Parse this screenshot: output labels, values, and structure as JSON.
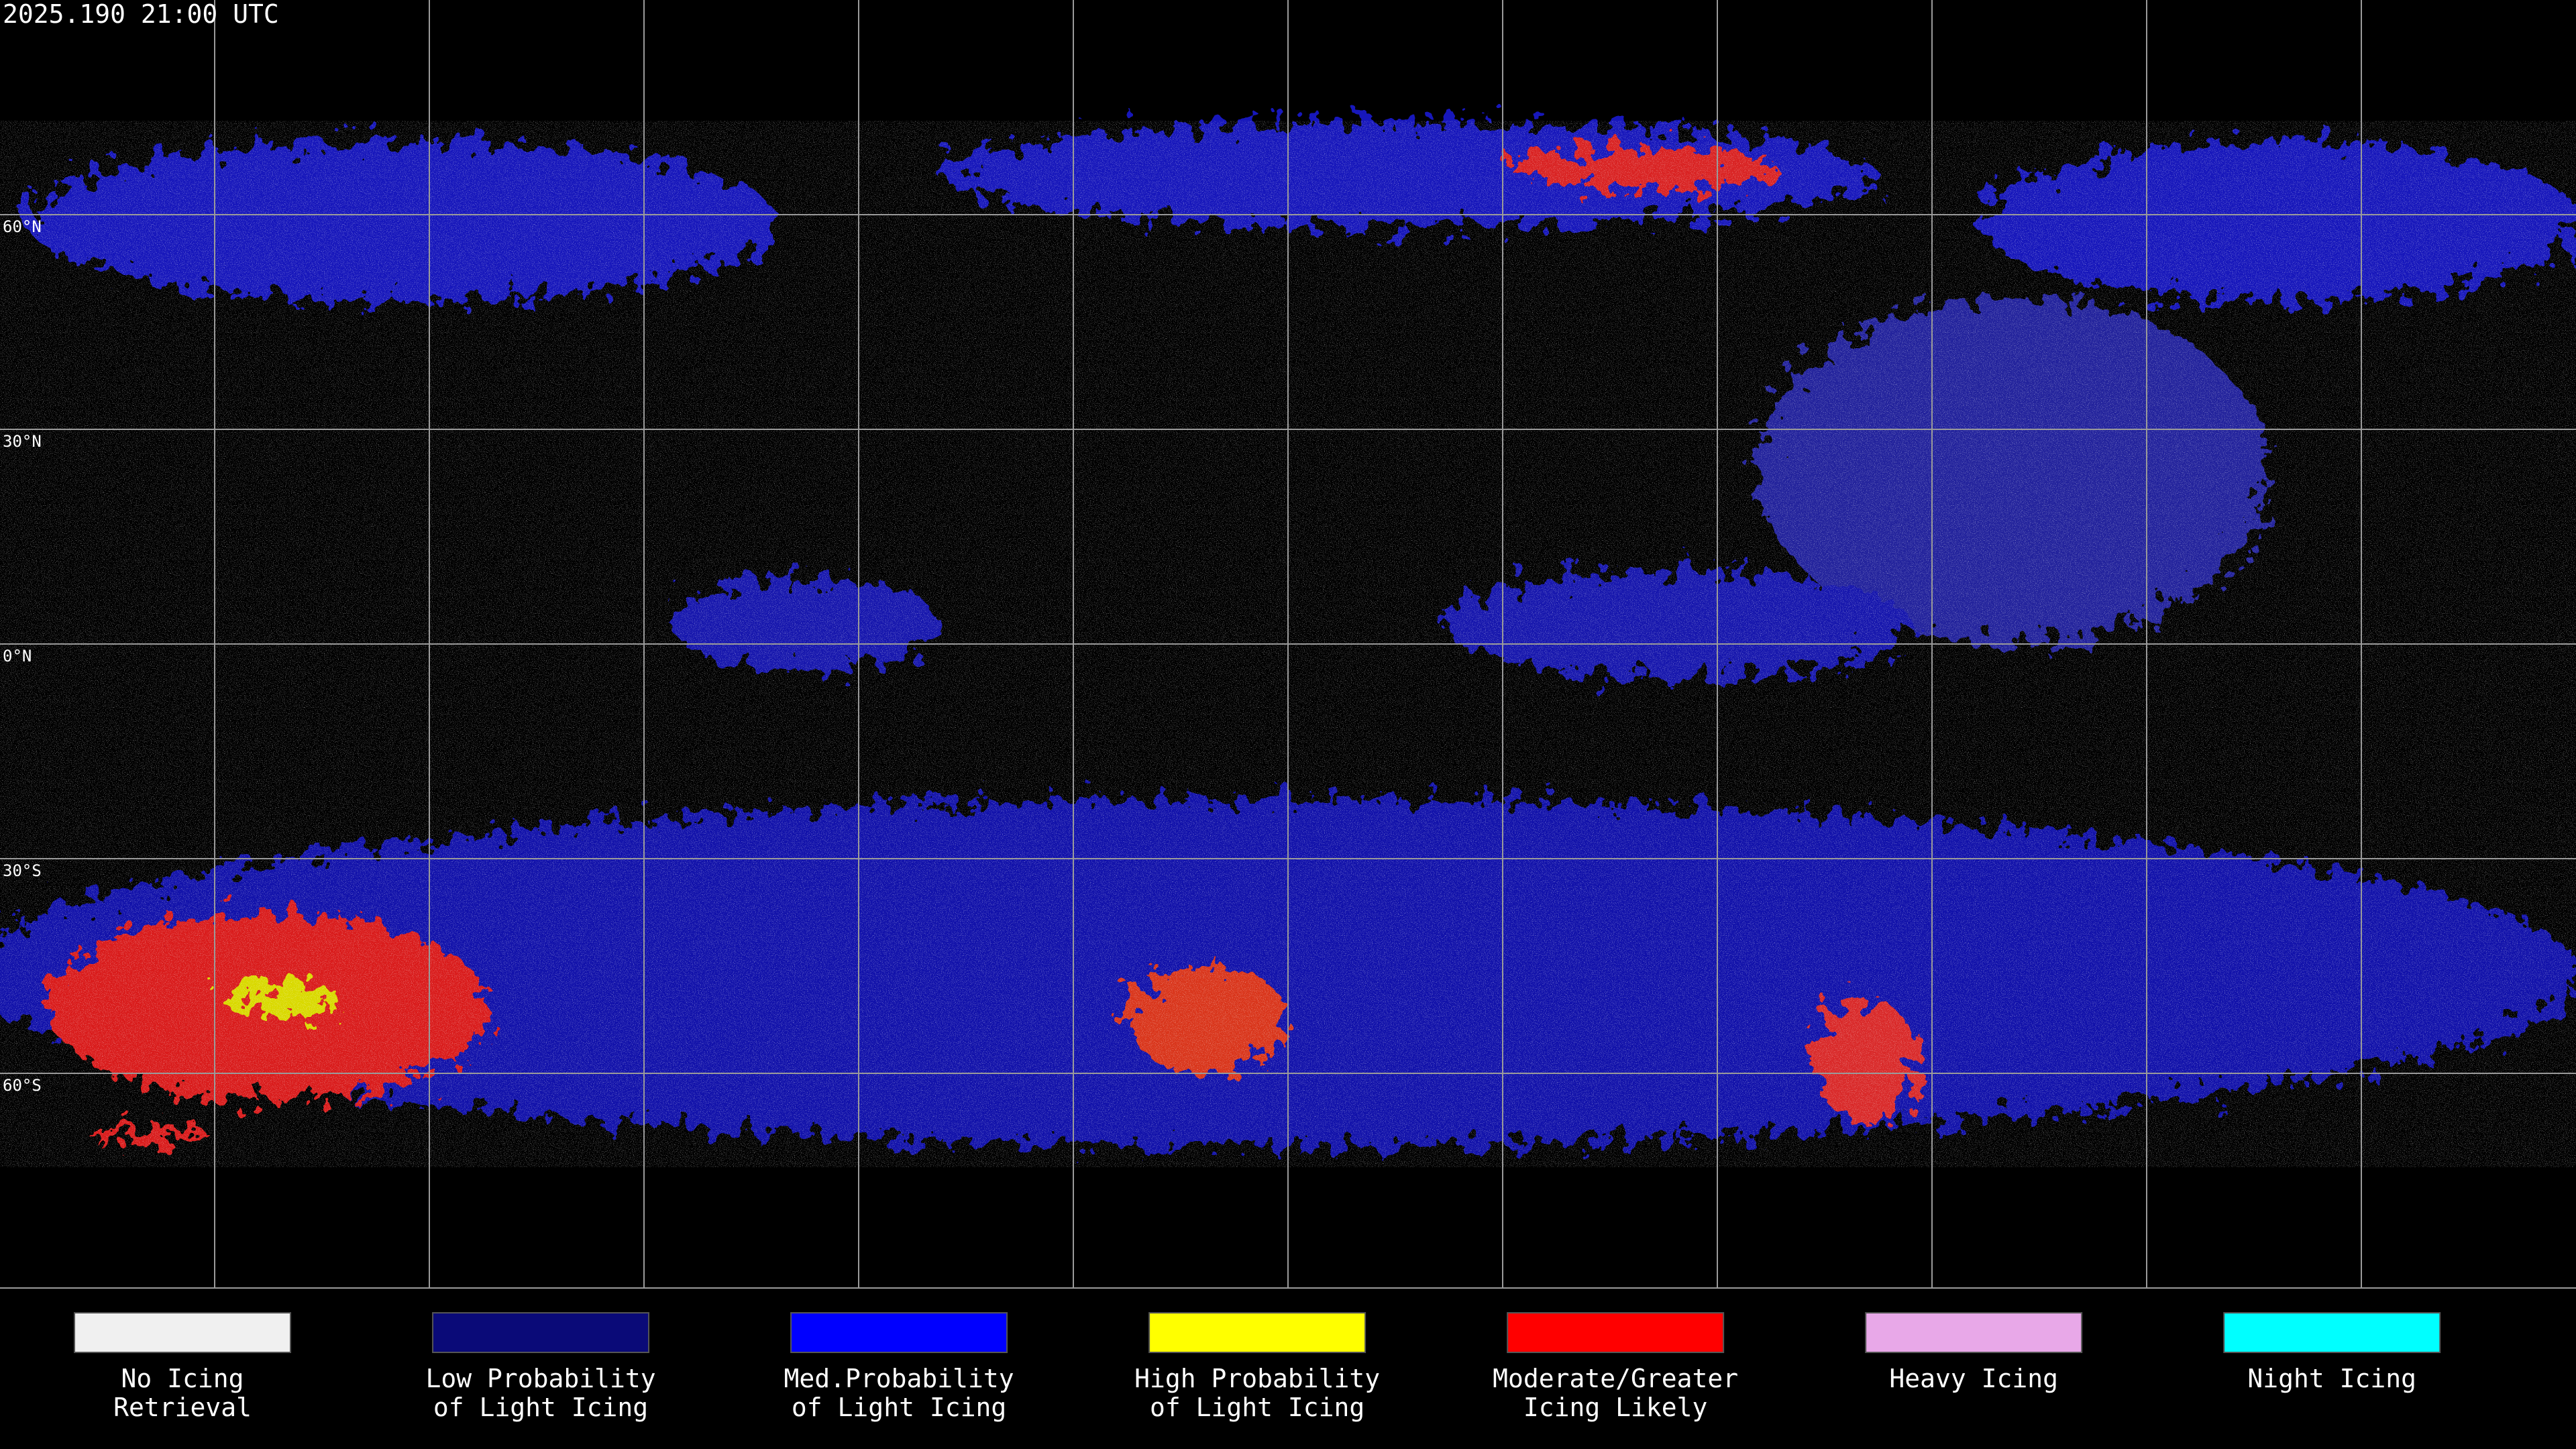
{
  "header": {
    "timestamp": "2025.190 21:00 UTC"
  },
  "map": {
    "lat_labels": [
      "60°N",
      "30°N",
      "0°N",
      "30°S",
      "60°S"
    ]
  },
  "legend": {
    "items": [
      {
        "color": "#f0f0f0",
        "lines": [
          "No Icing",
          "Retrieval"
        ]
      },
      {
        "color": "#0a0a78",
        "lines": [
          "Low Probability",
          "of Light Icing"
        ]
      },
      {
        "color": "#0000ff",
        "lines": [
          "Med.Probability",
          "of Light Icing"
        ]
      },
      {
        "color": "#ffff00",
        "lines": [
          "High Probability",
          "of Light Icing"
        ]
      },
      {
        "color": "#ff0000",
        "lines": [
          "Moderate/Greater",
          "Icing Likely"
        ]
      },
      {
        "color": "#e8a8e8",
        "lines": [
          "Heavy Icing"
        ]
      },
      {
        "color": "#00ffff",
        "lines": [
          "Night Icing"
        ]
      }
    ]
  }
}
